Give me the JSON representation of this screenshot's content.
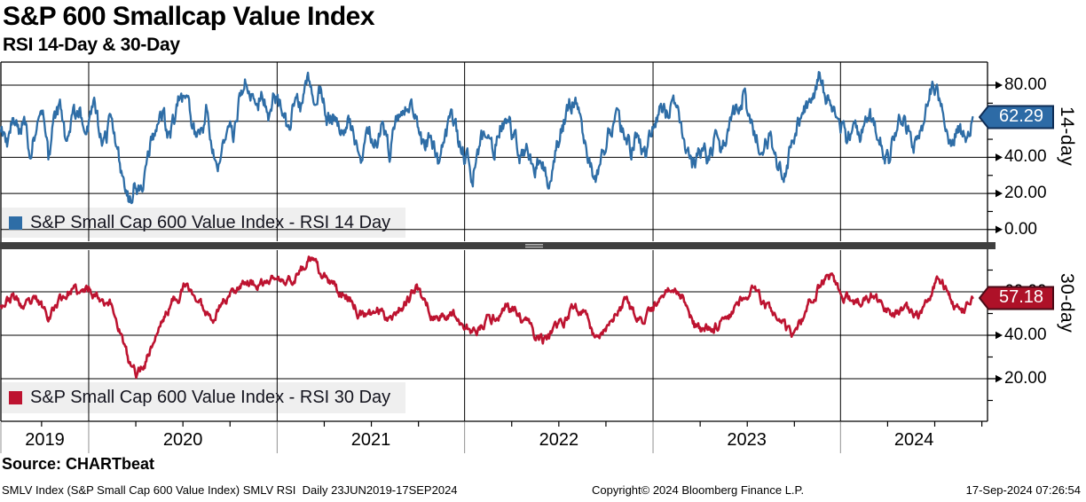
{
  "header": {
    "title": "S&P 600 Smallcap Value Index",
    "subtitle": "RSI 14-Day & 30-Day"
  },
  "colors": {
    "rsi14_line": "#2e6da6",
    "rsi14_badge": "#2d6ba6",
    "rsi14_badge_border": "#0f2d55",
    "rsi30_line": "#bd1330",
    "rsi30_badge": "#ae1128",
    "rsi30_badge_border": "#4a0a16",
    "grid": "#000000",
    "legend_bg": "#efefef",
    "separator": "#3f3f3f",
    "below_axis_grid": "#909090"
  },
  "x_axis": {
    "years": [
      "2019",
      "2020",
      "2021",
      "2022",
      "2023",
      "2024"
    ],
    "year_boundaries": [
      0.089,
      0.28,
      0.47,
      0.661,
      0.851
    ],
    "range_label": "23JUN2019-17SEP2024"
  },
  "chart_data": [
    {
      "type": "line",
      "panel": "top",
      "legend": "S&P Small Cap 600 Value Index - RSI 14 Day",
      "axis_label": "14-day",
      "last_value": 62.29,
      "last_value_label": "62.29",
      "yticks_major": [
        80,
        60,
        40,
        20,
        0
      ],
      "yticks_minor": [
        70,
        50,
        30,
        10
      ],
      "gridlines": [
        0,
        20,
        40,
        60,
        80
      ],
      "ylim": [
        0,
        99
      ],
      "color_key": "rsi14",
      "anchors": [
        [
          0.0,
          57
        ],
        [
          0.006,
          46
        ],
        [
          0.012,
          60
        ],
        [
          0.018,
          52
        ],
        [
          0.024,
          64
        ],
        [
          0.03,
          40
        ],
        [
          0.036,
          56
        ],
        [
          0.042,
          66
        ],
        [
          0.048,
          38
        ],
        [
          0.054,
          58
        ],
        [
          0.06,
          67
        ],
        [
          0.066,
          48
        ],
        [
          0.072,
          62
        ],
        [
          0.08,
          66
        ],
        [
          0.088,
          58
        ],
        [
          0.095,
          67
        ],
        [
          0.103,
          45
        ],
        [
          0.11,
          58
        ],
        [
          0.118,
          45
        ],
        [
          0.124,
          28
        ],
        [
          0.13,
          16
        ],
        [
          0.136,
          26
        ],
        [
          0.141,
          18
        ],
        [
          0.148,
          38
        ],
        [
          0.156,
          55
        ],
        [
          0.164,
          63
        ],
        [
          0.171,
          50
        ],
        [
          0.179,
          70
        ],
        [
          0.187,
          74
        ],
        [
          0.194,
          60
        ],
        [
          0.201,
          47
        ],
        [
          0.208,
          66
        ],
        [
          0.215,
          42
        ],
        [
          0.222,
          38
        ],
        [
          0.229,
          56
        ],
        [
          0.236,
          50
        ],
        [
          0.243,
          78
        ],
        [
          0.25,
          81
        ],
        [
          0.257,
          68
        ],
        [
          0.264,
          74
        ],
        [
          0.271,
          62
        ],
        [
          0.277,
          76
        ],
        [
          0.284,
          66
        ],
        [
          0.291,
          55
        ],
        [
          0.298,
          73
        ],
        [
          0.305,
          64
        ],
        [
          0.311,
          80
        ],
        [
          0.318,
          72
        ],
        [
          0.324,
          77
        ],
        [
          0.331,
          60
        ],
        [
          0.338,
          66
        ],
        [
          0.345,
          52
        ],
        [
          0.352,
          63
        ],
        [
          0.359,
          46
        ],
        [
          0.366,
          38
        ],
        [
          0.373,
          54
        ],
        [
          0.38,
          47
        ],
        [
          0.387,
          61
        ],
        [
          0.394,
          43
        ],
        [
          0.401,
          57
        ],
        [
          0.408,
          68
        ],
        [
          0.415,
          72
        ],
        [
          0.422,
          58
        ],
        [
          0.429,
          44
        ],
        [
          0.436,
          52
        ],
        [
          0.443,
          38
        ],
        [
          0.45,
          55
        ],
        [
          0.457,
          60
        ],
        [
          0.464,
          48
        ],
        [
          0.471,
          40
        ],
        [
          0.478,
          31
        ],
        [
          0.485,
          47
        ],
        [
          0.492,
          56
        ],
        [
          0.499,
          42
        ],
        [
          0.506,
          58
        ],
        [
          0.513,
          64
        ],
        [
          0.52,
          50
        ],
        [
          0.527,
          38
        ],
        [
          0.534,
          46
        ],
        [
          0.541,
          33
        ],
        [
          0.548,
          41
        ],
        [
          0.555,
          28
        ],
        [
          0.562,
          44
        ],
        [
          0.569,
          57
        ],
        [
          0.576,
          68
        ],
        [
          0.583,
          71
        ],
        [
          0.59,
          56
        ],
        [
          0.597,
          36
        ],
        [
          0.604,
          29
        ],
        [
          0.611,
          46
        ],
        [
          0.618,
          57
        ],
        [
          0.625,
          64
        ],
        [
          0.632,
          51
        ],
        [
          0.639,
          43
        ],
        [
          0.646,
          55
        ],
        [
          0.653,
          39
        ],
        [
          0.661,
          58
        ],
        [
          0.668,
          70
        ],
        [
          0.675,
          64
        ],
        [
          0.682,
          72
        ],
        [
          0.689,
          58
        ],
        [
          0.696,
          40
        ],
        [
          0.703,
          34
        ],
        [
          0.71,
          46
        ],
        [
          0.717,
          39
        ],
        [
          0.724,
          51
        ],
        [
          0.731,
          44
        ],
        [
          0.738,
          56
        ],
        [
          0.745,
          66
        ],
        [
          0.752,
          74
        ],
        [
          0.759,
          62
        ],
        [
          0.766,
          50
        ],
        [
          0.773,
          42
        ],
        [
          0.78,
          53
        ],
        [
          0.787,
          36
        ],
        [
          0.794,
          31
        ],
        [
          0.801,
          48
        ],
        [
          0.808,
          58
        ],
        [
          0.815,
          68
        ],
        [
          0.822,
          76
        ],
        [
          0.829,
          84
        ],
        [
          0.836,
          74
        ],
        [
          0.843,
          66
        ],
        [
          0.851,
          56
        ],
        [
          0.858,
          48
        ],
        [
          0.865,
          61
        ],
        [
          0.872,
          53
        ],
        [
          0.879,
          64
        ],
        [
          0.886,
          58
        ],
        [
          0.893,
          46
        ],
        [
          0.9,
          39
        ],
        [
          0.907,
          54
        ],
        [
          0.914,
          62
        ],
        [
          0.921,
          50
        ],
        [
          0.928,
          46
        ],
        [
          0.935,
          60
        ],
        [
          0.942,
          79
        ],
        [
          0.949,
          74
        ],
        [
          0.956,
          58
        ],
        [
          0.963,
          49
        ],
        [
          0.97,
          56
        ],
        [
          0.977,
          52
        ],
        [
          0.985,
          62.29
        ]
      ]
    },
    {
      "type": "line",
      "panel": "bottom",
      "legend": "S&P Small Cap 600 Value Index - RSI 30 Day",
      "axis_label": "30-day",
      "last_value": 57.18,
      "last_value_label": "57.18",
      "yticks_major": [
        60,
        40,
        20
      ],
      "yticks_minor": [
        70,
        50,
        30,
        10
      ],
      "gridlines": [
        20,
        40,
        60
      ],
      "ylim": [
        0,
        79
      ],
      "color_key": "rsi30",
      "anchors": [
        [
          0.0,
          55
        ],
        [
          0.012,
          58
        ],
        [
          0.024,
          52
        ],
        [
          0.036,
          55
        ],
        [
          0.048,
          50
        ],
        [
          0.06,
          57
        ],
        [
          0.072,
          61
        ],
        [
          0.08,
          58
        ],
        [
          0.09,
          62
        ],
        [
          0.1,
          58
        ],
        [
          0.11,
          56
        ],
        [
          0.12,
          44
        ],
        [
          0.13,
          26
        ],
        [
          0.138,
          22
        ],
        [
          0.146,
          28
        ],
        [
          0.155,
          38
        ],
        [
          0.165,
          48
        ],
        [
          0.175,
          56
        ],
        [
          0.185,
          62
        ],
        [
          0.195,
          59
        ],
        [
          0.205,
          52
        ],
        [
          0.215,
          49
        ],
        [
          0.225,
          56
        ],
        [
          0.235,
          60
        ],
        [
          0.245,
          66
        ],
        [
          0.255,
          64
        ],
        [
          0.265,
          62
        ],
        [
          0.277,
          67
        ],
        [
          0.288,
          63
        ],
        [
          0.298,
          67
        ],
        [
          0.308,
          72
        ],
        [
          0.314,
          75
        ],
        [
          0.322,
          68
        ],
        [
          0.332,
          64
        ],
        [
          0.342,
          60
        ],
        [
          0.352,
          58
        ],
        [
          0.362,
          52
        ],
        [
          0.372,
          47
        ],
        [
          0.382,
          52
        ],
        [
          0.392,
          49
        ],
        [
          0.402,
          52
        ],
        [
          0.412,
          57
        ],
        [
          0.422,
          61
        ],
        [
          0.432,
          54
        ],
        [
          0.442,
          47
        ],
        [
          0.452,
          50
        ],
        [
          0.462,
          49
        ],
        [
          0.472,
          44
        ],
        [
          0.482,
          40
        ],
        [
          0.492,
          46
        ],
        [
          0.502,
          49
        ],
        [
          0.512,
          54
        ],
        [
          0.522,
          50
        ],
        [
          0.532,
          45
        ],
        [
          0.542,
          40
        ],
        [
          0.552,
          37
        ],
        [
          0.562,
          41
        ],
        [
          0.572,
          47
        ],
        [
          0.582,
          54
        ],
        [
          0.592,
          50
        ],
        [
          0.602,
          40
        ],
        [
          0.612,
          43
        ],
        [
          0.622,
          49
        ],
        [
          0.632,
          54
        ],
        [
          0.642,
          49
        ],
        [
          0.652,
          45
        ],
        [
          0.663,
          53
        ],
        [
          0.673,
          60
        ],
        [
          0.683,
          63
        ],
        [
          0.693,
          57
        ],
        [
          0.703,
          45
        ],
        [
          0.713,
          41
        ],
        [
          0.723,
          45
        ],
        [
          0.733,
          47
        ],
        [
          0.743,
          52
        ],
        [
          0.753,
          59
        ],
        [
          0.763,
          61
        ],
        [
          0.773,
          55
        ],
        [
          0.783,
          49
        ],
        [
          0.793,
          43
        ],
        [
          0.803,
          39
        ],
        [
          0.813,
          47
        ],
        [
          0.823,
          57
        ],
        [
          0.833,
          66
        ],
        [
          0.843,
          67
        ],
        [
          0.853,
          60
        ],
        [
          0.863,
          54
        ],
        [
          0.873,
          57
        ],
        [
          0.883,
          59
        ],
        [
          0.893,
          53
        ],
        [
          0.903,
          48
        ],
        [
          0.913,
          52
        ],
        [
          0.923,
          50
        ],
        [
          0.933,
          47
        ],
        [
          0.943,
          60
        ],
        [
          0.95,
          68
        ],
        [
          0.958,
          62
        ],
        [
          0.966,
          55
        ],
        [
          0.974,
          52
        ],
        [
          0.985,
          57.18
        ]
      ]
    }
  ],
  "footer": {
    "source": "Source: CHARTbeat",
    "descriptor": "SMLV Index (S&P Small Cap 600 Value Index) SMLV RSI  Daily 23JUN2019-17SEP2024",
    "copyright": "Copyright© 2024 Bloomberg Finance L.P.",
    "timestamp": "17-Sep-2024 07:26:54"
  }
}
